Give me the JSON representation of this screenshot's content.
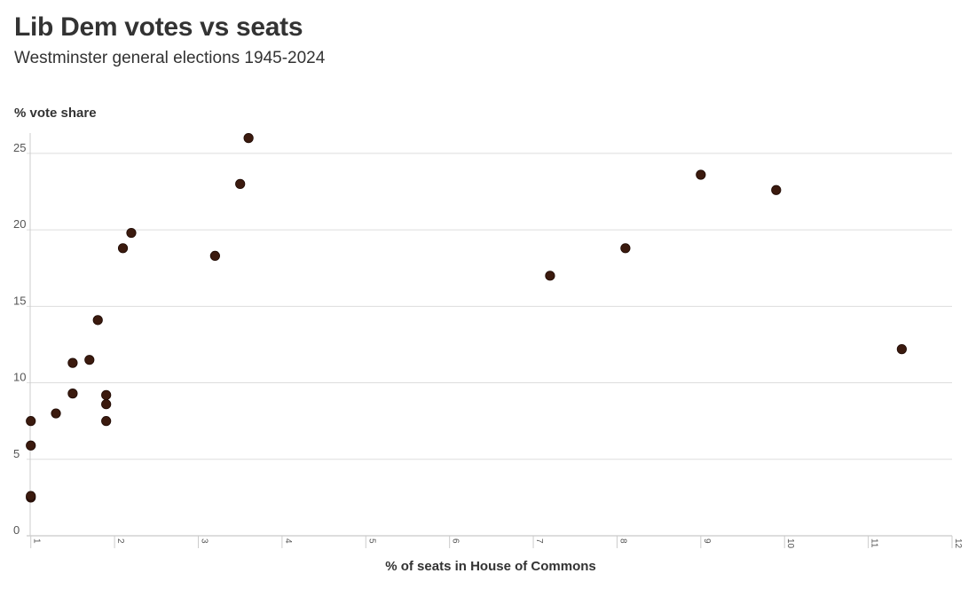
{
  "chart_data": {
    "type": "scatter",
    "title": "Lib Dem votes vs seats",
    "subtitle": "Westminster general elections 1945-2024",
    "ylabel": "% vote share",
    "xlabel": "% of seats in House of Commons",
    "xlim": [
      0.95,
      12
    ],
    "ylim": [
      0,
      26.5
    ],
    "xticks": [
      1,
      2,
      3,
      4,
      5,
      6,
      7,
      8,
      9,
      10,
      11,
      12
    ],
    "yticks": [
      0,
      5,
      10,
      15,
      20,
      25
    ],
    "grid": "horizontal",
    "marker_color": "#3b1a0e",
    "points": [
      {
        "x": 1.0,
        "y": 2.5
      },
      {
        "x": 1.0,
        "y": 2.6
      },
      {
        "x": 1.0,
        "y": 5.9
      },
      {
        "x": 1.0,
        "y": 7.5
      },
      {
        "x": 1.3,
        "y": 8.0
      },
      {
        "x": 1.5,
        "y": 9.3
      },
      {
        "x": 1.5,
        "y": 11.3
      },
      {
        "x": 1.7,
        "y": 11.5
      },
      {
        "x": 1.8,
        "y": 14.1
      },
      {
        "x": 1.9,
        "y": 7.5
      },
      {
        "x": 1.9,
        "y": 8.6
      },
      {
        "x": 1.9,
        "y": 9.2
      },
      {
        "x": 2.1,
        "y": 18.8
      },
      {
        "x": 2.2,
        "y": 19.8
      },
      {
        "x": 3.2,
        "y": 18.3
      },
      {
        "x": 3.5,
        "y": 23.0
      },
      {
        "x": 3.6,
        "y": 26.0
      },
      {
        "x": 7.2,
        "y": 17.0
      },
      {
        "x": 8.1,
        "y": 18.8
      },
      {
        "x": 9.0,
        "y": 23.6
      },
      {
        "x": 9.9,
        "y": 22.6
      },
      {
        "x": 11.4,
        "y": 12.2
      }
    ]
  }
}
